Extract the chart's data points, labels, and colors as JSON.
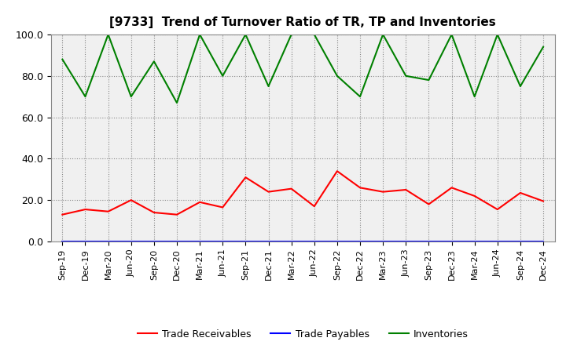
{
  "title": "[9733]  Trend of Turnover Ratio of TR, TP and Inventories",
  "ylim": [
    0.0,
    100.0
  ],
  "yticks": [
    0.0,
    20.0,
    40.0,
    60.0,
    80.0,
    100.0
  ],
  "x_labels": [
    "Sep-19",
    "Dec-19",
    "Mar-20",
    "Jun-20",
    "Sep-20",
    "Dec-20",
    "Mar-21",
    "Jun-21",
    "Sep-21",
    "Dec-21",
    "Mar-22",
    "Jun-22",
    "Sep-22",
    "Dec-22",
    "Mar-23",
    "Jun-23",
    "Sep-23",
    "Dec-23",
    "Mar-24",
    "Jun-24",
    "Sep-24",
    "Dec-24"
  ],
  "trade_receivables": [
    13.0,
    15.5,
    14.5,
    20.0,
    14.0,
    13.0,
    19.0,
    16.5,
    31.0,
    24.0,
    25.5,
    17.0,
    34.0,
    26.0,
    24.0,
    25.0,
    18.0,
    26.0,
    22.0,
    15.5,
    23.5,
    19.5
  ],
  "trade_payables": [
    null,
    null,
    null,
    null,
    null,
    null,
    null,
    null,
    null,
    null,
    null,
    null,
    null,
    null,
    null,
    null,
    null,
    null,
    null,
    null,
    null,
    null
  ],
  "inventories": [
    88.0,
    70.0,
    100.0,
    70.0,
    87.0,
    67.0,
    100.0,
    80.0,
    100.0,
    75.0,
    100.0,
    100.0,
    80.0,
    70.0,
    100.0,
    80.0,
    78.0,
    100.0,
    70.0,
    100.0,
    75.0,
    94.0
  ],
  "color_tr": "#FF0000",
  "color_tp": "#0000FF",
  "color_inv": "#008000",
  "legend_labels": [
    "Trade Receivables",
    "Trade Payables",
    "Inventories"
  ],
  "bg_color": "#FFFFFF",
  "plot_bg_color": "#F0F0F0",
  "grid_color": "#888888",
  "title_fontsize": 11,
  "tick_fontsize": 8,
  "legend_fontsize": 9,
  "line_width": 1.5
}
